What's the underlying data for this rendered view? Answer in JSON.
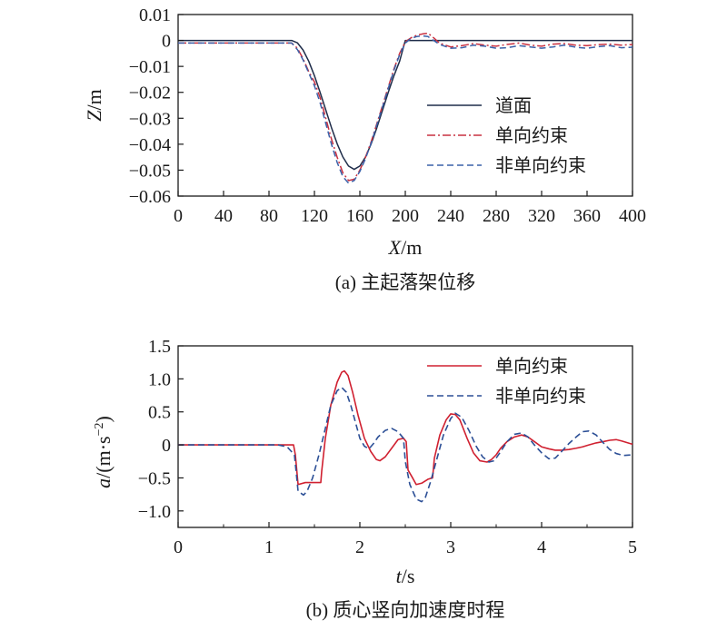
{
  "chart_data": [
    {
      "type": "line",
      "title": "",
      "caption": "(a) 主起落架位移",
      "xlabel_var": "X",
      "xlabel_unit": "/m",
      "ylabel_var": "Z",
      "ylabel_unit": "/m",
      "xlim": [
        0,
        400
      ],
      "ylim": [
        -0.06,
        0.01
      ],
      "xticks": [
        0,
        40,
        80,
        120,
        160,
        200,
        240,
        280,
        320,
        360,
        400
      ],
      "yticks": [
        0.01,
        0,
        -0.01,
        -0.02,
        -0.03,
        -0.04,
        -0.05,
        -0.06
      ],
      "ytick_labels": [
        "0.01",
        "0",
        "−0.01",
        "−0.02",
        "−0.03",
        "−0.04",
        "−0.05",
        "−0.06"
      ],
      "grid": false,
      "legend_position": "right",
      "series": [
        {
          "name": "道面",
          "color": "#1f2d4a",
          "style": "solid",
          "x": [
            0,
            100,
            105,
            110,
            115,
            120,
            125,
            130,
            135,
            140,
            145,
            150,
            155,
            160,
            165,
            170,
            175,
            180,
            185,
            190,
            195,
            200,
            400
          ],
          "y": [
            0,
            0,
            -0.0009,
            -0.0037,
            -0.008,
            -0.0136,
            -0.02,
            -0.0268,
            -0.0336,
            -0.0398,
            -0.0449,
            -0.0484,
            -0.0497,
            -0.0484,
            -0.0449,
            -0.0398,
            -0.0336,
            -0.0268,
            -0.02,
            -0.0136,
            -0.008,
            0,
            0
          ]
        },
        {
          "name": "单向约束",
          "color": "#c83040",
          "style": "dashdot",
          "x": [
            0,
            100,
            105,
            110,
            115,
            120,
            125,
            130,
            135,
            140,
            145,
            150,
            155,
            160,
            165,
            170,
            175,
            180,
            185,
            190,
            195,
            200,
            205,
            210,
            215,
            220,
            225,
            230,
            240,
            250,
            260,
            270,
            280,
            290,
            300,
            310,
            320,
            330,
            340,
            350,
            360,
            370,
            380,
            390,
            400
          ],
          "y": [
            -0.001,
            -0.001,
            -0.003,
            -0.007,
            -0.012,
            -0.016,
            -0.022,
            -0.03,
            -0.038,
            -0.045,
            -0.051,
            -0.054,
            -0.0535,
            -0.05,
            -0.045,
            -0.039,
            -0.032,
            -0.025,
            -0.018,
            -0.011,
            -0.005,
            -0.0005,
            0.001,
            0.002,
            0.0025,
            0.0028,
            0.001,
            -0.001,
            -0.0025,
            -0.002,
            -0.0012,
            -0.0018,
            -0.0022,
            -0.0015,
            -0.001,
            -0.0018,
            -0.0022,
            -0.0014,
            -0.0012,
            -0.0018,
            -0.002,
            -0.0016,
            -0.0014,
            -0.0018,
            -0.0016
          ]
        },
        {
          "name": "非单向约束",
          "color": "#3a60a8",
          "style": "dashed",
          "x": [
            0,
            100,
            105,
            110,
            115,
            120,
            125,
            130,
            135,
            140,
            145,
            150,
            155,
            160,
            165,
            170,
            175,
            180,
            185,
            190,
            195,
            200,
            205,
            210,
            215,
            220,
            225,
            230,
            240,
            250,
            260,
            270,
            280,
            290,
            300,
            310,
            320,
            330,
            340,
            350,
            360,
            370,
            380,
            390,
            400
          ],
          "y": [
            -0.001,
            -0.001,
            -0.0035,
            -0.0075,
            -0.0125,
            -0.0175,
            -0.024,
            -0.032,
            -0.04,
            -0.047,
            -0.0525,
            -0.055,
            -0.054,
            -0.0505,
            -0.0455,
            -0.0395,
            -0.0325,
            -0.0255,
            -0.0185,
            -0.0115,
            -0.0055,
            -0.001,
            0.0008,
            0.0015,
            0.0018,
            0.0015,
            0.0,
            -0.0015,
            -0.003,
            -0.0028,
            -0.0018,
            -0.0022,
            -0.003,
            -0.0028,
            -0.002,
            -0.0025,
            -0.003,
            -0.0025,
            -0.0018,
            -0.0026,
            -0.003,
            -0.0024,
            -0.002,
            -0.0028,
            -0.0026
          ]
        }
      ]
    },
    {
      "type": "line",
      "title": "",
      "caption": "(b) 质心竖向加速度时程",
      "xlabel_var": "t",
      "xlabel_unit": "/s",
      "ylabel_var": "a",
      "ylabel_unit": "/(m·s",
      "ylabel_sup": "−2",
      "ylabel_close": ")",
      "xlim": [
        0,
        5
      ],
      "ylim": [
        -1.25,
        1.5
      ],
      "xticks": [
        0,
        1,
        2,
        3,
        4,
        5
      ],
      "yticks": [
        1.5,
        1.0,
        0.5,
        0,
        -0.5,
        -1.0
      ],
      "ytick_labels": [
        "1.5",
        "1.0",
        "0.5",
        "0",
        "−0.5",
        "−1.0"
      ],
      "grid": false,
      "legend_position": "top-right",
      "series": [
        {
          "name": "单向约束",
          "color": "#d02030",
          "style": "solid",
          "x": [
            0,
            1.27,
            1.29,
            1.32,
            1.4,
            1.48,
            1.57,
            1.58,
            1.62,
            1.68,
            1.75,
            1.8,
            1.83,
            1.87,
            1.92,
            1.98,
            2.05,
            2.12,
            2.18,
            2.22,
            2.28,
            2.35,
            2.42,
            2.48,
            2.51,
            2.53,
            2.58,
            2.62,
            2.68,
            2.75,
            2.8,
            2.82,
            2.88,
            2.95,
            3.0,
            3.05,
            3.1,
            3.18,
            3.25,
            3.32,
            3.4,
            3.45,
            3.5,
            3.55,
            3.62,
            3.7,
            3.78,
            3.85,
            3.92,
            4.0,
            4.08,
            4.15,
            4.22,
            4.3,
            4.38,
            4.45,
            4.52,
            4.6,
            4.68,
            4.75,
            4.82,
            4.88,
            4.95,
            5.0
          ],
          "y": [
            0,
            0,
            -0.15,
            -0.6,
            -0.57,
            -0.57,
            -0.57,
            -0.4,
            0.1,
            0.6,
            0.95,
            1.1,
            1.12,
            1.05,
            0.8,
            0.45,
            0.1,
            -0.1,
            -0.22,
            -0.24,
            -0.18,
            -0.05,
            0.08,
            0.1,
            0.05,
            -0.38,
            -0.5,
            -0.6,
            -0.58,
            -0.52,
            -0.5,
            -0.2,
            0.15,
            0.38,
            0.47,
            0.46,
            0.38,
            0.1,
            -0.12,
            -0.24,
            -0.26,
            -0.22,
            -0.15,
            -0.05,
            0.05,
            0.12,
            0.15,
            0.12,
            0.05,
            -0.03,
            -0.06,
            -0.08,
            -0.08,
            -0.07,
            -0.05,
            -0.03,
            0.0,
            0.03,
            0.05,
            0.07,
            0.08,
            0.06,
            0.03,
            0.01
          ]
        },
        {
          "name": "非单向约束",
          "color": "#2c4f96",
          "style": "dashed",
          "x": [
            0,
            1.1,
            1.2,
            1.28,
            1.32,
            1.38,
            1.42,
            1.48,
            1.55,
            1.62,
            1.68,
            1.75,
            1.8,
            1.85,
            1.9,
            1.95,
            2.0,
            2.05,
            2.1,
            2.15,
            2.2,
            2.28,
            2.35,
            2.42,
            2.48,
            2.5,
            2.55,
            2.62,
            2.68,
            2.72,
            2.78,
            2.85,
            2.92,
            3.0,
            3.05,
            3.12,
            3.2,
            3.28,
            3.35,
            3.42,
            3.48,
            3.55,
            3.62,
            3.7,
            3.78,
            3.85,
            3.92,
            4.0,
            4.08,
            4.15,
            4.22,
            4.3,
            4.38,
            4.45,
            4.52,
            4.6,
            4.68,
            4.75,
            4.82,
            4.9,
            5.0
          ],
          "y": [
            0,
            0,
            -0.03,
            -0.15,
            -0.7,
            -0.76,
            -0.7,
            -0.5,
            -0.15,
            0.25,
            0.6,
            0.82,
            0.87,
            0.8,
            0.6,
            0.35,
            0.1,
            -0.02,
            -0.06,
            0.02,
            0.12,
            0.22,
            0.25,
            0.2,
            0.1,
            -0.25,
            -0.6,
            -0.82,
            -0.86,
            -0.8,
            -0.55,
            -0.2,
            0.15,
            0.4,
            0.48,
            0.42,
            0.22,
            -0.02,
            -0.18,
            -0.26,
            -0.24,
            -0.1,
            0.05,
            0.16,
            0.18,
            0.12,
            0.0,
            -0.12,
            -0.21,
            -0.2,
            -0.1,
            0.02,
            0.12,
            0.2,
            0.21,
            0.15,
            0.03,
            -0.07,
            -0.13,
            -0.16,
            -0.15
          ]
        }
      ]
    }
  ]
}
